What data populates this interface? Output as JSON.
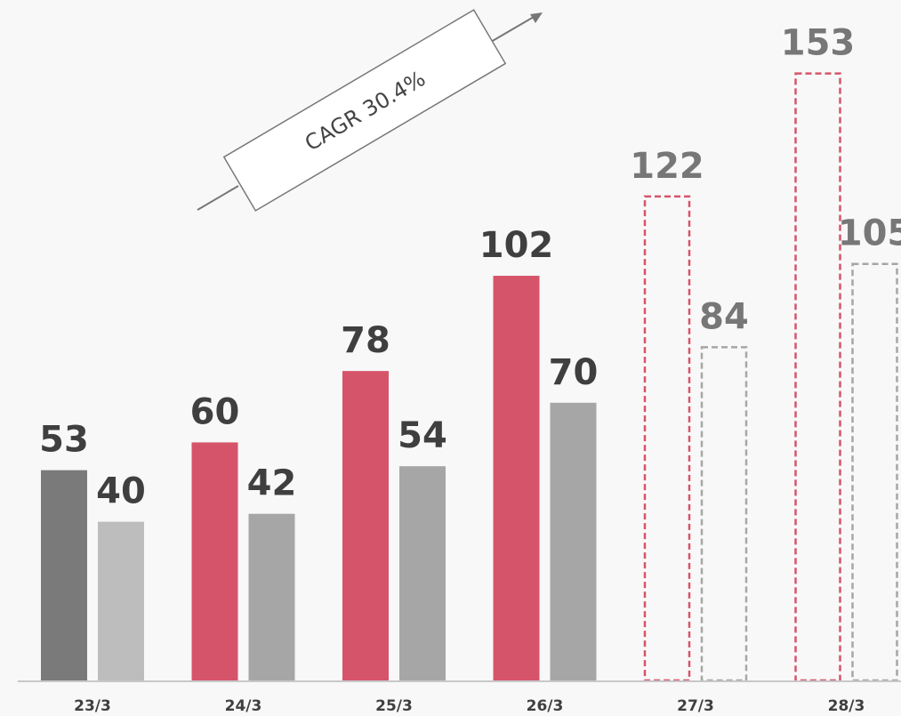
{
  "chart_data": {
    "type": "bar",
    "categories": [
      "23/3",
      "24/3",
      "25/3",
      "26/3",
      "27/3",
      "28/3"
    ],
    "series": [
      {
        "values": [
          53,
          60,
          78,
          102,
          122,
          153
        ],
        "colors": [
          "#7a7a7a",
          "#d6546a",
          "#d6546a",
          "#d6546a",
          "#d6546a",
          "#d6546a"
        ],
        "styles": [
          "solid",
          "solid",
          "solid",
          "solid",
          "dashed",
          "dashed"
        ]
      },
      {
        "values": [
          40,
          42,
          54,
          70,
          84,
          105
        ],
        "colors": [
          "#bdbdbd",
          "#a6a6a6",
          "#a6a6a6",
          "#a6a6a6",
          "#a6a6a6",
          "#a6a6a6"
        ],
        "styles": [
          "solid",
          "solid",
          "solid",
          "solid",
          "dashed",
          "dashed"
        ]
      }
    ],
    "label_colors": [
      "#3f3f3f",
      "#3f3f3f",
      "#3f3f3f",
      "#3f3f3f",
      "#777777",
      "#777777"
    ],
    "annotation": "CAGR 30.4%",
    "legend": "none",
    "grid": false,
    "ylim": [
      0,
      160
    ]
  }
}
